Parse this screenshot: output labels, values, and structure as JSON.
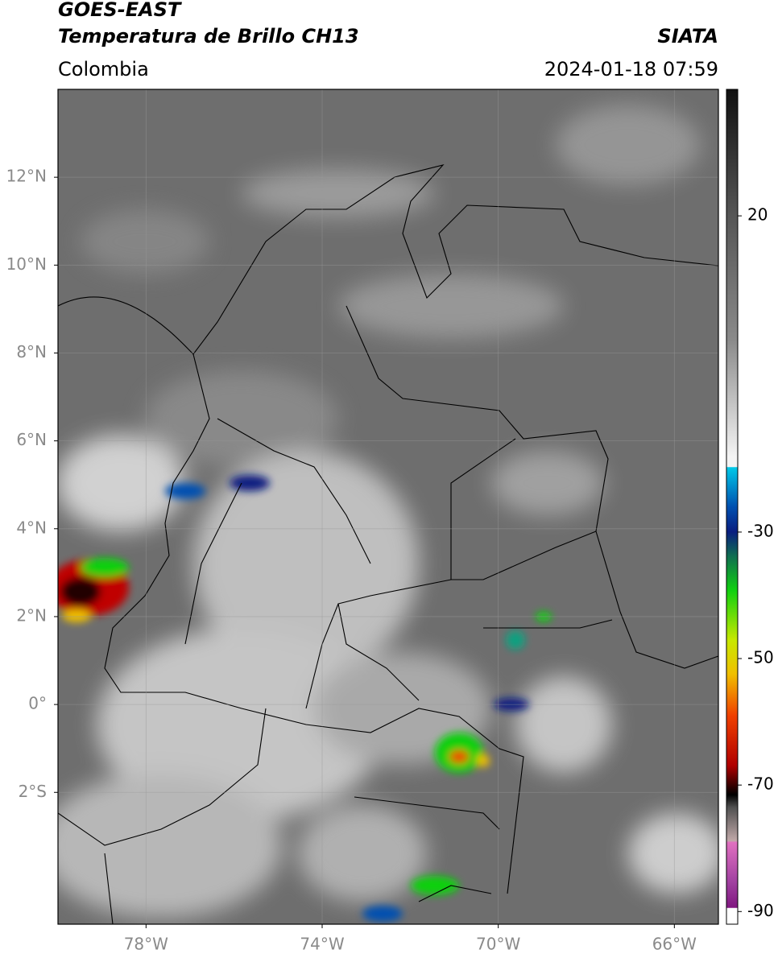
{
  "header": {
    "line1": "GOES-EAST",
    "line2": "Temperatura de Brillo CH13",
    "source": "SIATA",
    "region": "Colombia",
    "timestamp": "2024-01-18 07:59"
  },
  "map": {
    "xlim": [
      -80,
      -65
    ],
    "ylim": [
      -5,
      14
    ],
    "yticks": [
      {
        "value": 12,
        "label": "12°N"
      },
      {
        "value": 10,
        "label": "10°N"
      },
      {
        "value": 8,
        "label": "8°N"
      },
      {
        "value": 6,
        "label": "6°N"
      },
      {
        "value": 4,
        "label": "4°N"
      },
      {
        "value": 2,
        "label": "2°N"
      },
      {
        "value": 0,
        "label": "0°"
      },
      {
        "value": -2,
        "label": "2°S"
      }
    ],
    "xticks": [
      {
        "value": -78,
        "label": "78°W"
      },
      {
        "value": -74,
        "label": "74°W"
      },
      {
        "value": -70,
        "label": "70°W"
      },
      {
        "value": -66,
        "label": "66°W"
      }
    ]
  },
  "colorbar": {
    "vlim": [
      -92,
      40
    ],
    "ticks": [
      20,
      -30,
      -50,
      -70,
      -90
    ]
  }
}
